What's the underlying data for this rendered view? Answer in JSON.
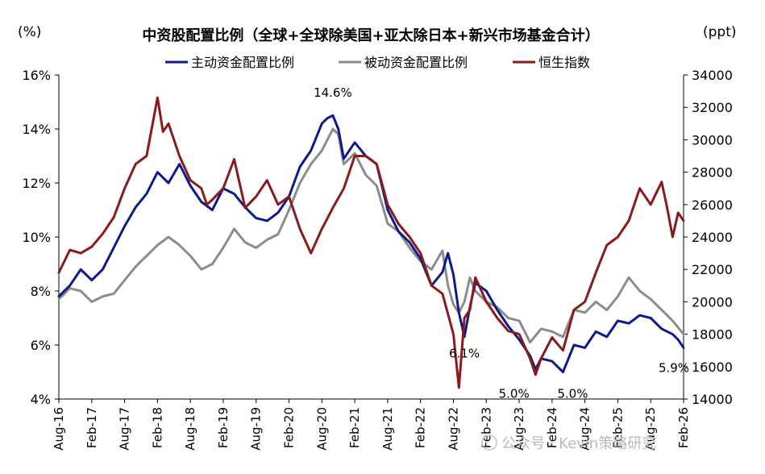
{
  "chart_data": {
    "type": "line",
    "title": "中资股配置比例（全球+全球除美国+亚太除日本+新兴市场基金合计）",
    "left_unit": "(%)",
    "right_unit": "(ppt)",
    "y_left": {
      "min": 4,
      "max": 16,
      "ticks": [
        "4%",
        "6%",
        "8%",
        "10%",
        "12%",
        "14%",
        "16%"
      ]
    },
    "y_right": {
      "min": 14000,
      "max": 34000,
      "ticks": [
        "14000",
        "16000",
        "18000",
        "20000",
        "22000",
        "24000",
        "26000",
        "28000",
        "30000",
        "32000",
        "34000"
      ]
    },
    "x_ticks": [
      "Aug-16",
      "Feb-17",
      "Aug-17",
      "Feb-18",
      "Aug-18",
      "Feb-19",
      "Aug-19",
      "Feb-20",
      "Aug-20",
      "Feb-21",
      "Aug-21",
      "Feb-22",
      "Aug-22",
      "Feb-23",
      "Aug-23",
      "Feb-24",
      "Aug-24",
      "Feb-25",
      "Aug-25",
      "Feb-26"
    ],
    "legend_position": "top",
    "series": [
      {
        "name": "主动资金配置比例",
        "color": "#0d1a8a",
        "axis": "left",
        "keyframes": [
          [
            0,
            7.8
          ],
          [
            2,
            8.2
          ],
          [
            4,
            8.8
          ],
          [
            6,
            8.4
          ],
          [
            8,
            8.8
          ],
          [
            10,
            9.6
          ],
          [
            12,
            10.4
          ],
          [
            14,
            11.1
          ],
          [
            16,
            11.6
          ],
          [
            18,
            12.4
          ],
          [
            20,
            12.0
          ],
          [
            22,
            12.7
          ],
          [
            24,
            11.9
          ],
          [
            26,
            11.3
          ],
          [
            28,
            11.0
          ],
          [
            30,
            11.8
          ],
          [
            32,
            11.6
          ],
          [
            34,
            11.1
          ],
          [
            36,
            10.7
          ],
          [
            38,
            10.6
          ],
          [
            40,
            10.9
          ],
          [
            42,
            11.5
          ],
          [
            44,
            12.6
          ],
          [
            46,
            13.2
          ],
          [
            48,
            14.2
          ],
          [
            49,
            14.4
          ],
          [
            50,
            14.5
          ],
          [
            51,
            14.0
          ],
          [
            52,
            12.9
          ],
          [
            54,
            13.5
          ],
          [
            56,
            13.0
          ],
          [
            58,
            12.7
          ],
          [
            60,
            11.0
          ],
          [
            62,
            10.2
          ],
          [
            64,
            9.8
          ],
          [
            66,
            9.2
          ],
          [
            68,
            8.2
          ],
          [
            70,
            8.7
          ],
          [
            71,
            9.4
          ],
          [
            72,
            8.6
          ],
          [
            73,
            7.2
          ],
          [
            74,
            6.3
          ],
          [
            75,
            7.4
          ],
          [
            76,
            8.3
          ],
          [
            78,
            8.0
          ],
          [
            80,
            7.3
          ],
          [
            82,
            6.7
          ],
          [
            84,
            6.2
          ],
          [
            86,
            5.6
          ],
          [
            87,
            5.1
          ],
          [
            88,
            5.5
          ],
          [
            90,
            5.4
          ],
          [
            92,
            5.0
          ],
          [
            94,
            6.0
          ],
          [
            96,
            5.9
          ],
          [
            98,
            6.5
          ],
          [
            100,
            6.3
          ],
          [
            102,
            6.9
          ],
          [
            104,
            6.8
          ],
          [
            106,
            7.1
          ],
          [
            108,
            7.0
          ],
          [
            110,
            6.6
          ],
          [
            112,
            6.4
          ],
          [
            113,
            6.2
          ],
          [
            114,
            5.9
          ]
        ]
      },
      {
        "name": "被动资金配置比例",
        "color": "#8c8c8c",
        "axis": "left",
        "keyframes": [
          [
            0,
            7.7
          ],
          [
            2,
            8.1
          ],
          [
            4,
            8.0
          ],
          [
            6,
            7.6
          ],
          [
            8,
            7.8
          ],
          [
            10,
            7.9
          ],
          [
            12,
            8.4
          ],
          [
            14,
            8.9
          ],
          [
            16,
            9.3
          ],
          [
            18,
            9.7
          ],
          [
            20,
            10.0
          ],
          [
            22,
            9.7
          ],
          [
            24,
            9.3
          ],
          [
            26,
            8.8
          ],
          [
            28,
            9.0
          ],
          [
            30,
            9.6
          ],
          [
            32,
            10.3
          ],
          [
            34,
            9.8
          ],
          [
            36,
            9.6
          ],
          [
            38,
            9.9
          ],
          [
            40,
            10.1
          ],
          [
            42,
            11.0
          ],
          [
            44,
            12.0
          ],
          [
            46,
            12.7
          ],
          [
            48,
            13.2
          ],
          [
            50,
            14.0
          ],
          [
            51,
            13.8
          ],
          [
            52,
            12.7
          ],
          [
            54,
            13.1
          ],
          [
            56,
            12.3
          ],
          [
            58,
            11.9
          ],
          [
            60,
            10.5
          ],
          [
            62,
            10.2
          ],
          [
            64,
            9.6
          ],
          [
            66,
            9.1
          ],
          [
            68,
            8.8
          ],
          [
            70,
            9.5
          ],
          [
            71,
            8.2
          ],
          [
            72,
            7.5
          ],
          [
            73,
            7.2
          ],
          [
            74,
            7.6
          ],
          [
            75,
            8.5
          ],
          [
            76,
            8.0
          ],
          [
            78,
            7.6
          ],
          [
            80,
            7.4
          ],
          [
            82,
            7.0
          ],
          [
            84,
            6.9
          ],
          [
            86,
            6.1
          ],
          [
            88,
            6.6
          ],
          [
            90,
            6.5
          ],
          [
            92,
            6.3
          ],
          [
            94,
            7.3
          ],
          [
            96,
            7.2
          ],
          [
            98,
            7.6
          ],
          [
            100,
            7.3
          ],
          [
            102,
            7.8
          ],
          [
            104,
            8.5
          ],
          [
            106,
            8.0
          ],
          [
            108,
            7.7
          ],
          [
            110,
            7.3
          ],
          [
            112,
            6.9
          ],
          [
            114,
            6.4
          ]
        ]
      },
      {
        "name": "恒生指数",
        "color": "#8b1a1a",
        "axis": "right",
        "keyframes": [
          [
            0,
            21800
          ],
          [
            2,
            23200
          ],
          [
            4,
            23000
          ],
          [
            6,
            23400
          ],
          [
            8,
            24200
          ],
          [
            10,
            25200
          ],
          [
            12,
            27000
          ],
          [
            14,
            28500
          ],
          [
            16,
            29000
          ],
          [
            18,
            32600
          ],
          [
            19,
            30500
          ],
          [
            20,
            31000
          ],
          [
            22,
            29000
          ],
          [
            24,
            27500
          ],
          [
            26,
            27000
          ],
          [
            27,
            26000
          ],
          [
            28,
            26300
          ],
          [
            30,
            27000
          ],
          [
            32,
            28800
          ],
          [
            34,
            25800
          ],
          [
            36,
            26500
          ],
          [
            38,
            27500
          ],
          [
            40,
            26000
          ],
          [
            42,
            26500
          ],
          [
            44,
            24500
          ],
          [
            46,
            23000
          ],
          [
            48,
            24500
          ],
          [
            50,
            25800
          ],
          [
            52,
            27000
          ],
          [
            54,
            29000
          ],
          [
            56,
            29000
          ],
          [
            58,
            28500
          ],
          [
            60,
            26000
          ],
          [
            62,
            24800
          ],
          [
            64,
            24000
          ],
          [
            66,
            23000
          ],
          [
            68,
            21000
          ],
          [
            70,
            20500
          ],
          [
            72,
            18000
          ],
          [
            73,
            14700
          ],
          [
            74,
            19000
          ],
          [
            75,
            19500
          ],
          [
            76,
            21500
          ],
          [
            78,
            20000
          ],
          [
            80,
            19000
          ],
          [
            82,
            18200
          ],
          [
            84,
            18000
          ],
          [
            86,
            16500
          ],
          [
            87,
            15500
          ],
          [
            88,
            16500
          ],
          [
            90,
            17800
          ],
          [
            92,
            17000
          ],
          [
            94,
            19500
          ],
          [
            96,
            20000
          ],
          [
            98,
            21800
          ],
          [
            100,
            23500
          ],
          [
            102,
            24000
          ],
          [
            104,
            25000
          ],
          [
            106,
            27000
          ],
          [
            108,
            26000
          ],
          [
            110,
            27400
          ],
          [
            111,
            25800
          ],
          [
            112,
            24000
          ],
          [
            113,
            25500
          ],
          [
            114,
            25000
          ]
        ]
      }
    ],
    "annotations": [
      {
        "text": "14.6%",
        "x": 50,
        "y": 14.6
      },
      {
        "text": "6.1%",
        "x": 74,
        "y": 6.1
      },
      {
        "text": "5.0%",
        "x": 86,
        "y": 5.0
      },
      {
        "text": "5.0%",
        "x": 92,
        "y": 5.0
      },
      {
        "text": "5.9%",
        "x": 114,
        "y": 5.9
      }
    ]
  },
  "watermark": "公众号 · Kevin策略研究",
  "colors": {
    "axis": "#000000",
    "background": "#ffffff"
  }
}
